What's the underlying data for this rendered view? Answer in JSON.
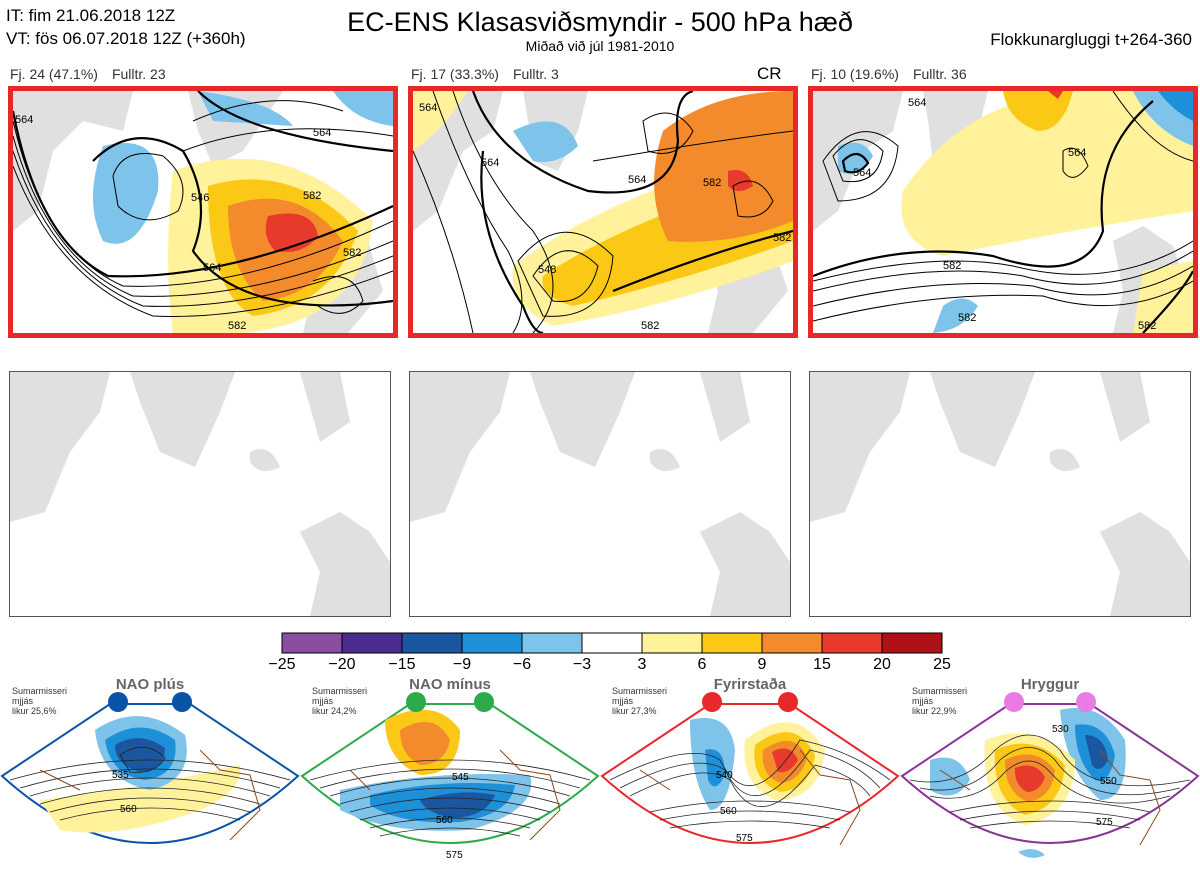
{
  "header": {
    "it": "IT: fim 21.06.2018 12Z",
    "vt": "VT: fös 06.07.2018 12Z  (+360h)",
    "title": "EC-ENS Klasasviðsmyndir - 500 hPa hæð",
    "subtitle": "Miðað við júl 1981-2010",
    "window": "Flokkunargluggi t+264-360"
  },
  "clusters": [
    {
      "fj": "Fj. 24 (47.1%)",
      "rep": "Fulltr. 23",
      "tag": ""
    },
    {
      "fj": "Fj. 17 (33.3%)",
      "rep": "Fulltr. 3",
      "tag": "CR"
    },
    {
      "fj": "Fj. 10 (19.6%)",
      "rep": "Fulltr. 36",
      "tag": ""
    }
  ],
  "contour_labels": {
    "p1": [
      "564",
      "546",
      "564",
      "582",
      "564",
      "582",
      "582"
    ],
    "p2": [
      "564",
      "564",
      "564",
      "548",
      "582",
      "582",
      "582"
    ],
    "p3": [
      "564",
      "564",
      "564",
      "582",
      "582",
      "582"
    ]
  },
  "colorbar": {
    "ticks": [
      "−25",
      "−20",
      "−15",
      "−9",
      "−6",
      "−3",
      "3",
      "6",
      "9",
      "15",
      "20",
      "25"
    ],
    "colors": [
      "#8b4d9e",
      "#4c2d8f",
      "#1b57a0",
      "#1e90d8",
      "#7ec3ea",
      "#ffffff",
      "#fff29a",
      "#fbc816",
      "#f38b2c",
      "#e83a2c",
      "#b01018"
    ]
  },
  "regimes": [
    {
      "name": "NAO plús",
      "note": [
        "Sumarmisseri",
        "mjjás",
        "likur 25,6%"
      ],
      "color": "#0a54a8",
      "dot_color": "#0a54a8",
      "labels": [
        "535",
        "560"
      ]
    },
    {
      "name": "NAO mínus",
      "note": [
        "Sumarmisseri",
        "mjjás",
        "likur 24,2%"
      ],
      "color": "#2daa4a",
      "dot_color": "#2daa4a",
      "labels": [
        "545",
        "560",
        "575"
      ]
    },
    {
      "name": "Fyrirstaða",
      "note": [
        "Sumarmisseri",
        "mjjás",
        "likur 27,3%"
      ],
      "color": "#e8282a",
      "dot_color": "#e8282a",
      "labels": [
        "540",
        "560",
        "575"
      ]
    },
    {
      "name": "Hryggur",
      "note": [
        "Sumarmisseri",
        "mjjás",
        "likur 22,9%"
      ],
      "color": "#8a3398",
      "dot_color": "#ea7ae4",
      "labels": [
        "530",
        "550",
        "575"
      ]
    }
  ]
}
